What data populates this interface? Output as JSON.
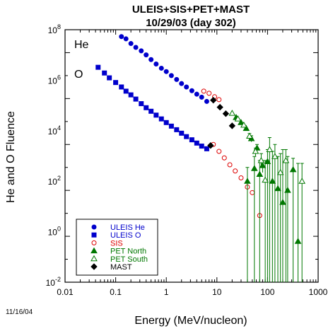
{
  "chart_data": {
    "type": "scatter",
    "title": "ULEIS+SIS+PET+MAST",
    "subtitle": "10/29/03 (day 302)",
    "xlabel": "Energy (MeV/nucleon)",
    "ylabel": "He and O Fluence",
    "xscale": "log",
    "yscale": "log",
    "xlim": [
      0.01,
      1000
    ],
    "ylim": [
      0.01,
      1000000000
    ],
    "grid": false,
    "legend_position": "bottom-left",
    "x_tick_labels": [
      "0.01",
      "0.1",
      "1",
      "10",
      "100",
      "1000"
    ],
    "y_tick_labels": [
      {
        "base": "10",
        "exp": "-2"
      },
      {
        "base": "10",
        "exp": "0"
      },
      {
        "base": "10",
        "exp": "2"
      },
      {
        "base": "10",
        "exp": "4"
      },
      {
        "base": "10",
        "exp": "6"
      },
      {
        "base": "10",
        "exp": "8"
      }
    ],
    "series_labels": {
      "he": "He",
      "o": "O"
    },
    "date_stamp": "11/16/04",
    "series": [
      {
        "name": "ULEIS He",
        "marker": "circle",
        "filled": true,
        "color": "#0000cc",
        "points": [
          [
            0.13,
            500000000.0
          ],
          [
            0.16,
            400000000.0
          ],
          [
            0.2,
            250000000.0
          ],
          [
            0.25,
            170000000.0
          ],
          [
            0.32,
            120000000.0
          ],
          [
            0.4,
            80000000.0
          ],
          [
            0.5,
            50000000.0
          ],
          [
            0.63,
            32000000.0
          ],
          [
            0.8,
            21000000.0
          ],
          [
            1.0,
            15000000.0
          ],
          [
            1.26,
            10000000.0
          ],
          [
            1.6,
            6800000.0
          ],
          [
            2.0,
            4500000.0
          ],
          [
            2.5,
            3200000.0
          ],
          [
            3.2,
            2200000.0
          ],
          [
            4.0,
            1550000.0
          ],
          [
            5.0,
            1150000.0
          ],
          [
            6.3,
            750000.0
          ]
        ]
      },
      {
        "name": "ULEIS O",
        "marker": "square",
        "filled": true,
        "color": "#0000cc",
        "points": [
          [
            0.045,
            23000000.0
          ],
          [
            0.06,
            13000000.0
          ],
          [
            0.075,
            8000000.0
          ],
          [
            0.1,
            5000000.0
          ],
          [
            0.13,
            3200000.0
          ],
          [
            0.16,
            2100000.0
          ],
          [
            0.2,
            1450000.0
          ],
          [
            0.25,
            950000.0
          ],
          [
            0.32,
            600000.0
          ],
          [
            0.4,
            400000.0
          ],
          [
            0.5,
            280000.0
          ],
          [
            0.63,
            190000.0
          ],
          [
            0.8,
            130000.0
          ],
          [
            1.0,
            90000.0
          ],
          [
            1.26,
            63000.0
          ],
          [
            1.6,
            44000.0
          ],
          [
            2.0,
            31000.0
          ],
          [
            2.5,
            22000.0
          ],
          [
            3.2,
            16000.0
          ],
          [
            4.0,
            11500.0
          ],
          [
            5.0,
            8500.0
          ],
          [
            6.3,
            6500.0
          ]
        ]
      },
      {
        "name": "SIS",
        "marker": "circle",
        "filled": false,
        "color": "#dd0000",
        "points": [
          [
            5.5,
            2100000.0
          ],
          [
            7.0,
            1700000.0
          ],
          [
            9.0,
            1200000.0
          ],
          [
            11,
            900000.0
          ],
          [
            8.5,
            10000.0
          ],
          [
            11,
            5000.0
          ],
          [
            14,
            2600.0
          ],
          [
            18,
            1300.0
          ],
          [
            23,
            700.0
          ],
          [
            30,
            350.0
          ],
          [
            40,
            140.0
          ],
          [
            50,
            80
          ],
          [
            70,
            8
          ]
        ]
      },
      {
        "name": "PET North",
        "marker": "triangle",
        "filled": true,
        "color": "#007700",
        "points": [
          {
            "x": 24,
            "y": 150000.0
          },
          {
            "x": 30,
            "y": 90000.0
          },
          {
            "x": 38,
            "y": 50000.0
          },
          {
            "x": 48,
            "y": 18000.0,
            "err": [
              13000.0,
              24000.0
            ]
          },
          {
            "x": 62,
            "y": 7000.0,
            "err": [
              4500.0,
              10000.0
            ]
          },
          {
            "x": 80,
            "y": 1200.0,
            "err": [
              600.0,
              2000.0
            ]
          },
          {
            "x": 40,
            "y": 250,
            "err": [
              0.01,
              1000.0
            ]
          },
          {
            "x": 55,
            "y": 900.0,
            "err": [
              0.01,
              3000.0
            ]
          },
          {
            "x": 70,
            "y": 500.0,
            "err": [
              0.01,
              2000.0
            ]
          },
          {
            "x": 100,
            "y": 1800.0,
            "err": [
              0.01,
              6000.0
            ]
          },
          {
            "x": 125,
            "y": 250,
            "err": [
              0.01,
              5000.0
            ]
          },
          {
            "x": 160,
            "y": 120,
            "err": [
              0.01,
              3000.0
            ]
          },
          {
            "x": 200,
            "y": 30,
            "err": [
              0.01,
              6000.0
            ]
          },
          {
            "x": 250,
            "y": 100,
            "err": [
              0.01,
              3000.0
            ]
          },
          {
            "x": 320,
            "y": 800.0,
            "err": [
              0.01,
              2500.0
            ]
          },
          {
            "x": 400,
            "y": 0.6,
            "err": [
              0.01,
              1500.0
            ]
          }
        ]
      },
      {
        "name": "PET South",
        "marker": "triangle",
        "filled": false,
        "color": "#007700",
        "points": [
          {
            "x": 20,
            "y": 230000.0
          },
          {
            "x": 26,
            "y": 130000.0
          },
          {
            "x": 34,
            "y": 70000.0
          },
          {
            "x": 44,
            "y": 23000.0,
            "err": [
              15000.0,
              30000.0
            ]
          },
          {
            "x": 58,
            "y": 5000.0,
            "err": [
              3000.0,
              7000.0
            ]
          },
          {
            "x": 75,
            "y": 2000.0,
            "err": [
              1000.0,
              4000.0
            ]
          },
          {
            "x": 90,
            "y": 280,
            "err": [
              0.01,
              2000.0
            ]
          },
          {
            "x": 110,
            "y": 6000.0,
            "err": [
              0.01,
              20000.0
            ]
          },
          {
            "x": 140,
            "y": 3000.0,
            "err": [
              0.01,
              10000.0
            ]
          },
          {
            "x": 180,
            "y": 600,
            "err": [
              0.01,
              4000.0
            ]
          },
          {
            "x": 230,
            "y": 2000.0,
            "err": [
              0.01,
              6000.0
            ]
          },
          {
            "x": 480,
            "y": 250,
            "err": [
              0.01,
              1500.0
            ]
          }
        ]
      },
      {
        "name": "MAST",
        "marker": "diamond",
        "filled": true,
        "color": "#000000",
        "points": [
          [
            8.5,
            850000.0
          ],
          [
            11.5,
            420000.0
          ],
          [
            15,
            220000.0
          ],
          [
            20,
            65000.0
          ],
          [
            7.5,
            9000.0
          ]
        ]
      }
    ]
  }
}
